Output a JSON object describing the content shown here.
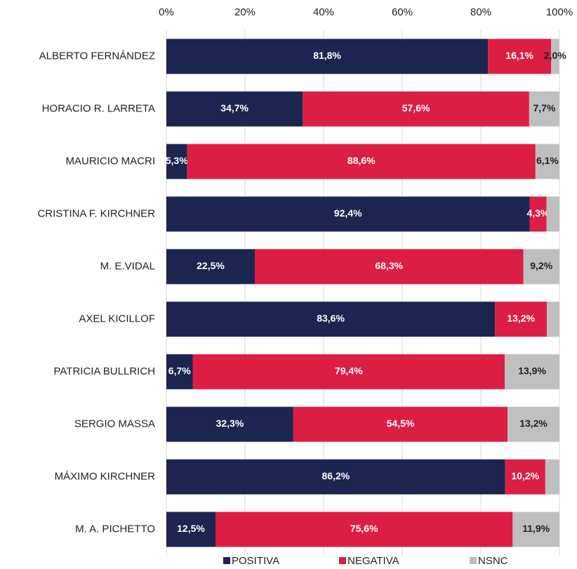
{
  "chart_data": {
    "type": "stacked_bar_horizontal",
    "categories": [
      "ALBERTO FERNÁNDEZ",
      "HORACIO R. LARRETA",
      "MAURICIO MACRI",
      "CRISTINA F. KIRCHNER",
      "M. E.VIDAL",
      "AXEL KICILLOF",
      "PATRICIA BULLRICH",
      "SERGIO MASSA",
      "MÁXIMO KIRCHNER",
      "M. A. PICHETTO"
    ],
    "series": [
      {
        "name": "POSITIVA",
        "color": "#1b2550",
        "values": [
          81.8,
          34.7,
          5.3,
          92.4,
          22.5,
          83.6,
          6.7,
          32.3,
          86.2,
          12.5
        ],
        "value_labels": [
          "81,8%",
          "34,7%",
          "5,3%",
          "92,4%",
          "22,5%",
          "83,6%",
          "6,7%",
          "32,3%",
          "86,2%",
          "12,5%"
        ]
      },
      {
        "name": "NEGATIVA",
        "color": "#dc1e45",
        "values": [
          16.1,
          57.6,
          88.6,
          4.3,
          68.3,
          13.2,
          79.4,
          54.5,
          10.2,
          75.6
        ],
        "value_labels": [
          "16,1%",
          "57,6%",
          "88,6%",
          "4,3%",
          "68,3%",
          "13,2%",
          "79,4%",
          "54,5%",
          "10,2%",
          "75,6%"
        ]
      },
      {
        "name": "NSNC",
        "color": "#bfbfbf",
        "values": [
          2.0,
          7.7,
          6.1,
          3.3,
          9.2,
          3.2,
          13.9,
          13.2,
          3.6,
          11.9
        ],
        "value_labels": [
          "2,0%",
          "7,7%",
          "6,1%",
          null,
          "9,2%",
          null,
          "13,9%",
          "13,2%",
          null,
          "11,9%"
        ]
      }
    ],
    "xlim": [
      0,
      100
    ],
    "xticks": [
      {
        "value": 0,
        "label": "0%"
      },
      {
        "value": 20,
        "label": "20%"
      },
      {
        "value": 40,
        "label": "40%"
      },
      {
        "value": 60,
        "label": "60%"
      },
      {
        "value": 80,
        "label": "80%"
      },
      {
        "value": 100,
        "label": "100%"
      }
    ],
    "grid": true,
    "legend": "bottom"
  }
}
